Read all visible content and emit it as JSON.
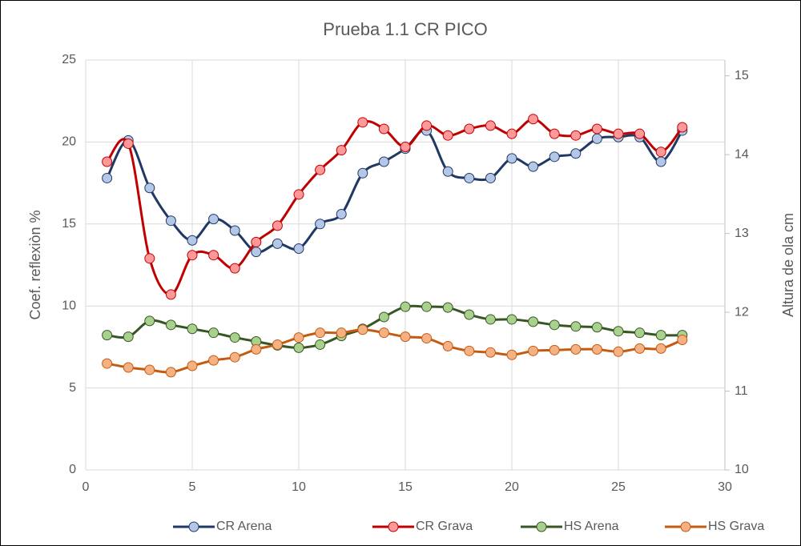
{
  "chart_data": {
    "type": "line",
    "title": "Prueba 1.1 CR PICO",
    "ylabel": "Coef. reflexiòn %",
    "y2label": "Altura de ola cm",
    "x": [
      1,
      2,
      3,
      4,
      5,
      6,
      7,
      8,
      9,
      10,
      11,
      12,
      13,
      14,
      15,
      16,
      17,
      18,
      19,
      20,
      21,
      22,
      23,
      24,
      25,
      26,
      27,
      28
    ],
    "xlim": [
      0,
      30
    ],
    "xticks": [
      0,
      5,
      10,
      15,
      20,
      25,
      30
    ],
    "ylim": [
      0,
      25
    ],
    "yticks": [
      0,
      5,
      10,
      15,
      20,
      25
    ],
    "y2lim": [
      10,
      15.2
    ],
    "y2ticks": [
      10,
      11,
      12,
      13,
      14,
      15
    ],
    "grid": true,
    "legend": "bottom",
    "smooth": true,
    "series": [
      {
        "name": "CR Arena",
        "color": "#203864",
        "marker_color": "#b4c7e7",
        "values": [
          17.8,
          20.1,
          17.2,
          15.2,
          14.0,
          15.3,
          14.6,
          13.3,
          13.8,
          13.5,
          15.0,
          15.6,
          18.1,
          18.8,
          19.6,
          20.7,
          18.2,
          17.8,
          17.8,
          19.0,
          18.5,
          19.1,
          19.3,
          20.2,
          20.3,
          20.3,
          18.8,
          20.7
        ]
      },
      {
        "name": "CR Grava",
        "color": "#c00000",
        "marker_color": "#ff9999",
        "values": [
          18.8,
          19.9,
          12.9,
          10.7,
          13.1,
          13.1,
          12.3,
          13.9,
          14.9,
          16.8,
          18.3,
          19.5,
          21.2,
          20.8,
          19.7,
          21.0,
          20.4,
          20.8,
          21.0,
          20.5,
          21.4,
          20.5,
          20.4,
          20.8,
          20.5,
          20.5,
          19.4,
          20.9
        ]
      },
      {
        "name": "HS Arena",
        "color": "#375623",
        "marker_color": "#a9d18e",
        "axis": "y2",
        "values": [
          11.71,
          11.69,
          11.89,
          11.84,
          11.79,
          11.74,
          11.68,
          11.63,
          11.58,
          11.55,
          11.59,
          11.7,
          11.79,
          11.94,
          12.07,
          12.07,
          12.06,
          11.97,
          11.91,
          11.91,
          11.88,
          11.84,
          11.82,
          11.81,
          11.76,
          11.74,
          11.71,
          11.71
        ]
      },
      {
        "name": "HS Grava",
        "color": "#c55a11",
        "marker_color": "#f4b183",
        "axis": "y2",
        "values": [
          11.35,
          11.3,
          11.27,
          11.24,
          11.32,
          11.39,
          11.43,
          11.53,
          11.59,
          11.68,
          11.74,
          11.74,
          11.78,
          11.74,
          11.69,
          11.67,
          11.57,
          11.51,
          11.49,
          11.46,
          11.51,
          11.52,
          11.53,
          11.53,
          11.5,
          11.54,
          11.54,
          11.65
        ]
      }
    ]
  }
}
